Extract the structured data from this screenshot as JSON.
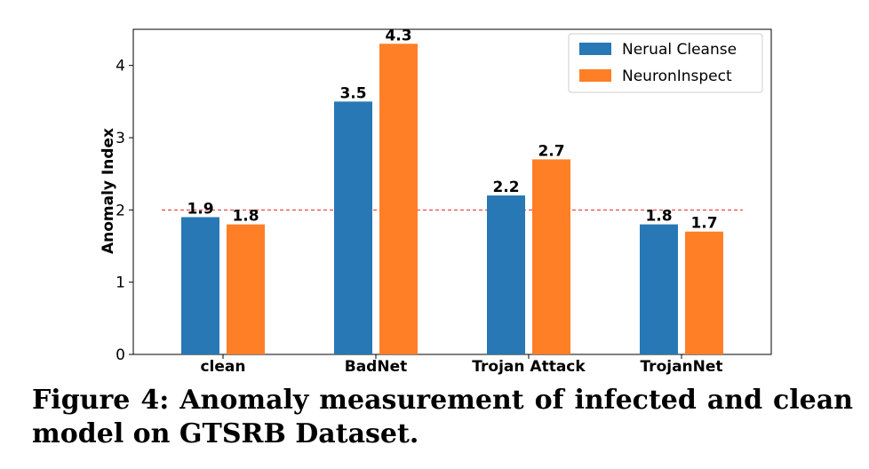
{
  "chart_data": {
    "type": "bar",
    "categories": [
      "clean",
      "BadNet",
      "Trojan Attack",
      "TrojanNet"
    ],
    "series": [
      {
        "name": "Nerual Cleanse",
        "values": [
          1.9,
          3.5,
          2.2,
          1.8
        ],
        "color": "#2878b5"
      },
      {
        "name": "NeuronInspect",
        "values": [
          1.8,
          4.3,
          2.7,
          1.7
        ],
        "color": "#ff7f27"
      }
    ],
    "data_labels": [
      [
        "1.9",
        "3.5",
        "2.2",
        "1.8"
      ],
      [
        "1.8",
        "4.3",
        "2.7",
        "1.7"
      ]
    ],
    "ylabel": "Anomaly Index",
    "xlabel": "",
    "ylim": [
      0,
      4.5
    ],
    "yticks": [
      0,
      1,
      2,
      3,
      4
    ],
    "threshold": {
      "value": 2,
      "color": "#e8242a",
      "style": "dashed"
    },
    "grid": false,
    "legend_position": "top-right"
  },
  "caption": "Figure 4: Anomaly measurement of infected and clean model on GTSRB Dataset."
}
